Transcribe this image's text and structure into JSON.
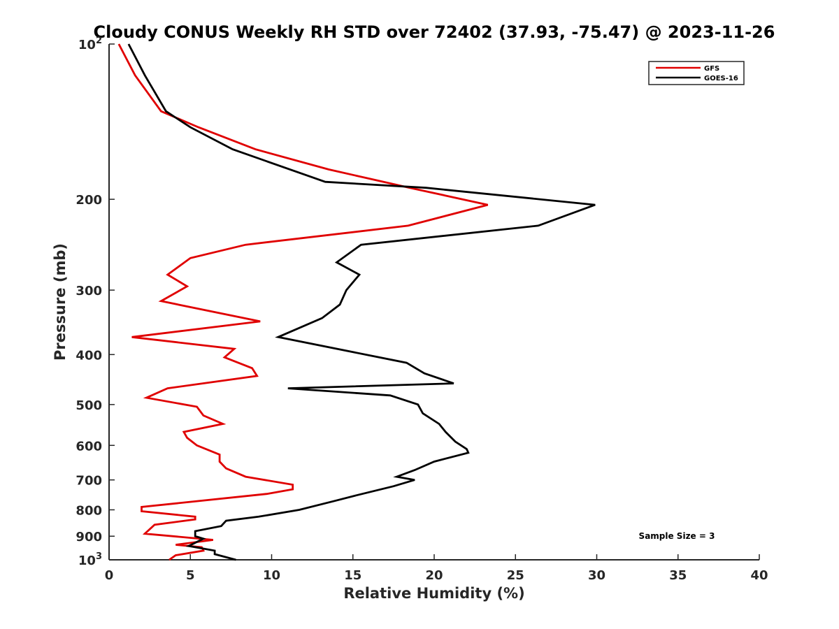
{
  "chart_data": {
    "type": "line",
    "title": "Cloudy CONUS Weekly RH STD over 72402 (37.93, -75.47) @ 2023-11-26",
    "xlabel": "Relative Humidity (%)",
    "ylabel": "Pressure (mb)",
    "xlim": [
      0,
      40
    ],
    "ylim": [
      100,
      1000
    ],
    "y_scale": "log",
    "y_reversed": true,
    "grid": false,
    "legend_position": "top-right",
    "x_ticks": [
      0,
      5,
      10,
      15,
      20,
      25,
      30,
      35,
      40
    ],
    "y_ticks": [
      {
        "value": 100,
        "base": "10",
        "exp": "2"
      },
      {
        "value": 200,
        "label": "200"
      },
      {
        "value": 300,
        "label": "300"
      },
      {
        "value": 400,
        "label": "400"
      },
      {
        "value": 500,
        "label": "500"
      },
      {
        "value": 600,
        "label": "600"
      },
      {
        "value": 700,
        "label": "700"
      },
      {
        "value": 800,
        "label": "800"
      },
      {
        "value": 900,
        "label": "900"
      },
      {
        "value": 1000,
        "base": "10",
        "exp": "3"
      }
    ],
    "series": [
      {
        "name": "GFS",
        "color": "#e00000",
        "points": [
          [
            0.6,
            100
          ],
          [
            1.6,
            115
          ],
          [
            3.2,
            135
          ],
          [
            5.5,
            145
          ],
          [
            9.0,
            160
          ],
          [
            13.5,
            175
          ],
          [
            18.5,
            190
          ],
          [
            23.3,
            205
          ],
          [
            18.4,
            225
          ],
          [
            8.4,
            245
          ],
          [
            5.0,
            260
          ],
          [
            3.6,
            280
          ],
          [
            4.8,
            295
          ],
          [
            3.2,
            315
          ],
          [
            9.3,
            345
          ],
          [
            1.4,
            370
          ],
          [
            7.7,
            390
          ],
          [
            7.1,
            405
          ],
          [
            8.8,
            425
          ],
          [
            9.1,
            440
          ],
          [
            3.6,
            465
          ],
          [
            2.3,
            485
          ],
          [
            5.4,
            505
          ],
          [
            5.8,
            525
          ],
          [
            7.0,
            545
          ],
          [
            4.6,
            565
          ],
          [
            4.8,
            580
          ],
          [
            5.4,
            600
          ],
          [
            6.8,
            625
          ],
          [
            6.8,
            645
          ],
          [
            7.2,
            665
          ],
          [
            8.4,
            690
          ],
          [
            11.3,
            715
          ],
          [
            11.3,
            730
          ],
          [
            9.7,
            745
          ],
          [
            2.0,
            790
          ],
          [
            2.0,
            805
          ],
          [
            5.3,
            825
          ],
          [
            5.3,
            835
          ],
          [
            2.8,
            855
          ],
          [
            2.2,
            890
          ],
          [
            6.4,
            915
          ],
          [
            4.1,
            935
          ],
          [
            5.7,
            945
          ],
          [
            5.8,
            960
          ],
          [
            4.1,
            980
          ],
          [
            3.7,
            1000
          ]
        ]
      },
      {
        "name": "GOES-16",
        "color": "#000000",
        "points": [
          [
            1.2,
            100
          ],
          [
            2.2,
            115
          ],
          [
            3.5,
            135
          ],
          [
            5.0,
            145
          ],
          [
            7.6,
            160
          ],
          [
            13.3,
            185
          ],
          [
            19.5,
            190
          ],
          [
            29.9,
            205
          ],
          [
            26.4,
            225
          ],
          [
            15.5,
            245
          ],
          [
            14.0,
            265
          ],
          [
            15.4,
            280
          ],
          [
            14.6,
            300
          ],
          [
            14.2,
            320
          ],
          [
            13.1,
            340
          ],
          [
            10.4,
            370
          ],
          [
            18.3,
            415
          ],
          [
            19.4,
            435
          ],
          [
            21.2,
            455
          ],
          [
            11.0,
            465
          ],
          [
            17.3,
            480
          ],
          [
            19.0,
            500
          ],
          [
            19.3,
            520
          ],
          [
            20.3,
            545
          ],
          [
            20.7,
            565
          ],
          [
            21.3,
            590
          ],
          [
            22.0,
            610
          ],
          [
            22.1,
            620
          ],
          [
            20.0,
            645
          ],
          [
            18.8,
            670
          ],
          [
            17.7,
            690
          ],
          [
            18.8,
            700
          ],
          [
            17.5,
            720
          ],
          [
            15.2,
            750
          ],
          [
            13.8,
            770
          ],
          [
            11.7,
            800
          ],
          [
            9.2,
            825
          ],
          [
            7.2,
            840
          ],
          [
            6.9,
            860
          ],
          [
            5.3,
            880
          ],
          [
            5.3,
            900
          ],
          [
            5.8,
            910
          ],
          [
            4.9,
            940
          ],
          [
            6.5,
            960
          ],
          [
            6.5,
            975
          ],
          [
            7.8,
            1000
          ]
        ]
      }
    ],
    "annotations": [
      "Sample Size = 3"
    ]
  }
}
